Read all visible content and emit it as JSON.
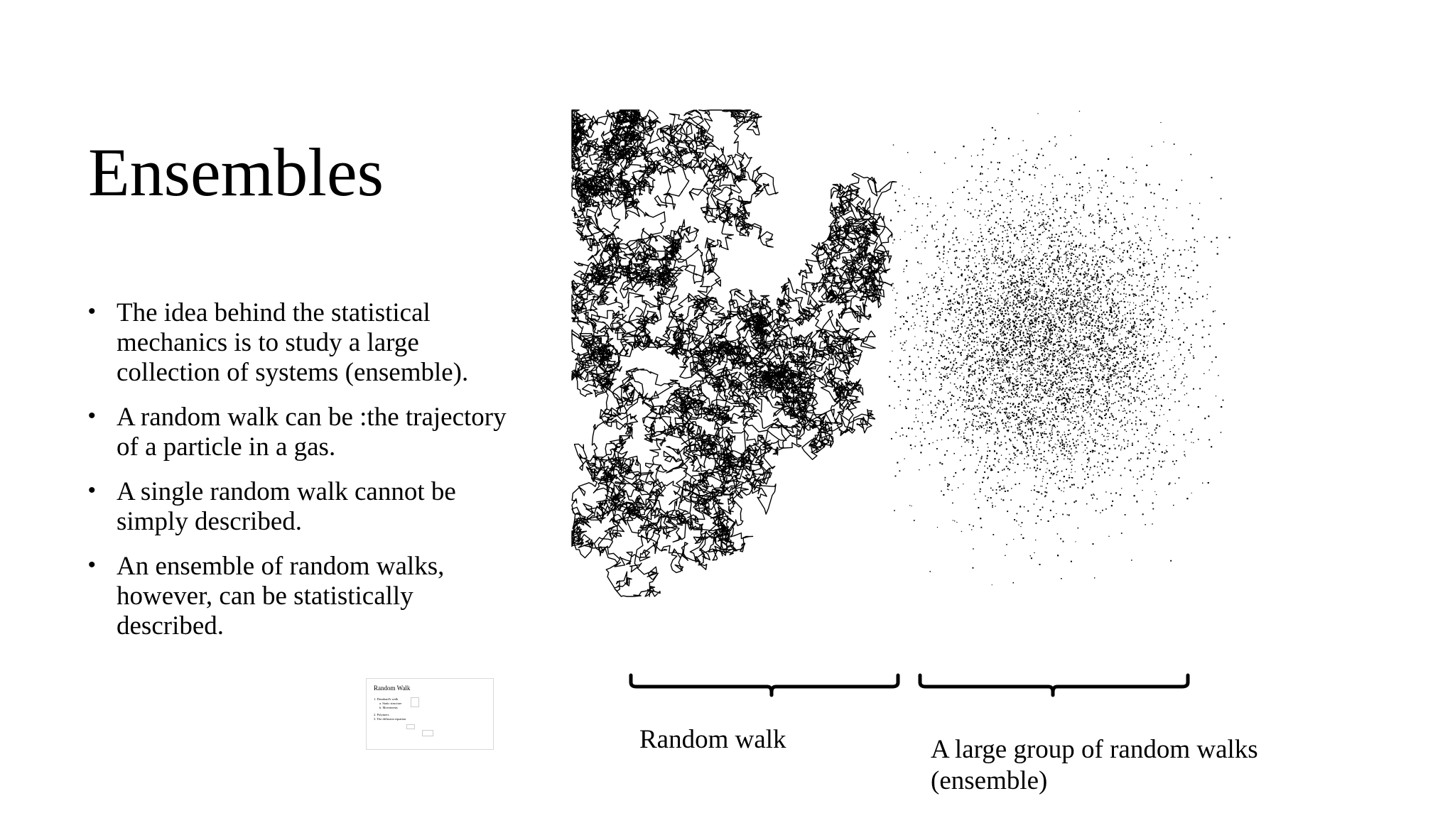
{
  "slide": {
    "title": "Ensembles",
    "bullets": [
      "The idea behind the statistical mechanics is to study a large collection of systems (ensemble).",
      "A random walk can be :the trajectory of a particle in a gas.",
      "A single random walk cannot be simply described.",
      "An ensemble of random walks, however, can be statistically described."
    ],
    "captions": {
      "random_walk": "Random walk",
      "ensemble_line1": "A large group of random walks",
      "ensemble_line2": "(ensemble)"
    },
    "thumbnail": {
      "title": "Random Walk",
      "items": [
        "1.  Drunkard's walk",
        "a.  Static structure",
        "b.  Movements",
        "2.  Polymers",
        "3.  The diffusion equation"
      ]
    }
  },
  "colors": {
    "background": "#ffffff",
    "text": "#000000",
    "ink": "#000000"
  },
  "icons": {
    "bullet": "bullet-dot"
  }
}
